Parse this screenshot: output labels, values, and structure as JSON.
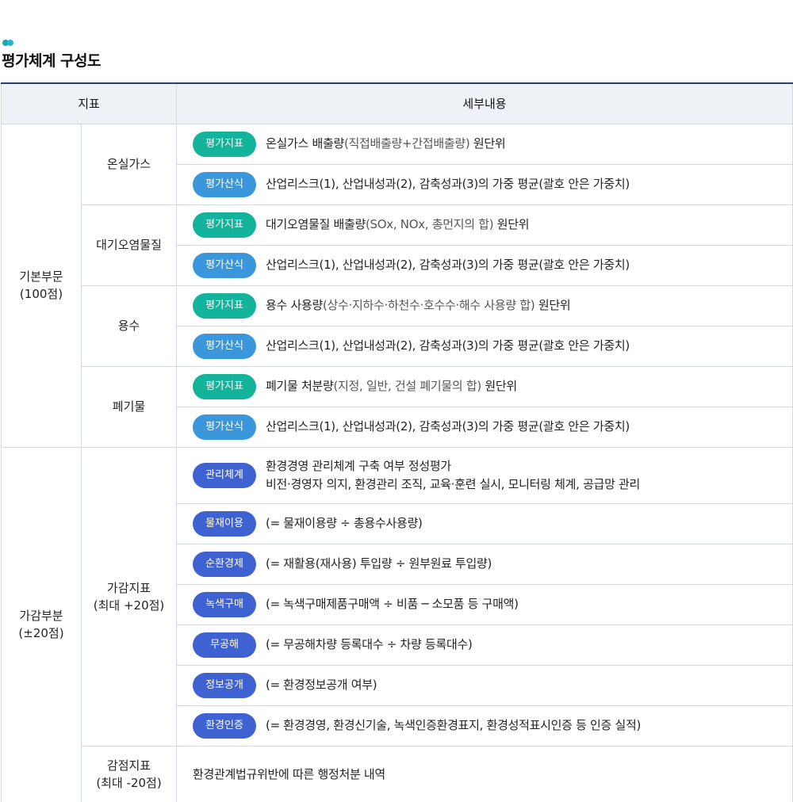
{
  "title": "평가체계 구성도",
  "headers": {
    "indicator": "지표",
    "details": "세부내용"
  },
  "badges": {
    "eval_indicator": "평가지표",
    "eval_formula": "평가산식",
    "mgmt_system": "관리체계",
    "material_use": "물재이용",
    "circular": "순환경제",
    "green_purchase": "녹색구매",
    "pollution_free": "무공해",
    "info_disclosure": "정보공개",
    "env_cert": "환경인증"
  },
  "basic": {
    "label_line1": "기본부문",
    "label_line2": "(100점)",
    "formula_text": "산업리스크(1), 산업내성과(2), 감축성과(3)의 가중 평균(괄호 안은 가중치)",
    "ghg": {
      "name": "온실가스",
      "indicator_main": "온실가스 배출량",
      "indicator_paren": "(직접배출량+간접배출량)",
      "indicator_tail": " 원단위"
    },
    "air": {
      "name": "대기오염물질",
      "indicator_main": "대기오염물질 배출량",
      "indicator_paren": "(SOx, NOx, 총먼지의 합)",
      "indicator_tail": " 원단위"
    },
    "water": {
      "name": "용수",
      "indicator_main": "용수 사용량",
      "indicator_paren": "(상수·지하수·하천수·호수수·해수 사용량 합)",
      "indicator_tail": " 원단위"
    },
    "waste": {
      "name": "폐기물",
      "indicator_main": "폐기물 처분량",
      "indicator_paren": "(지정, 일반, 건설 폐기물의 합)",
      "indicator_tail": " 원단위"
    }
  },
  "adjust": {
    "label_line1": "가감부분",
    "label_line2": "(±20점)",
    "plus": {
      "label_line1": "가감지표",
      "label_line2": "(최대 +20점)",
      "mgmt_line1": "환경경영 관리체계 구축 여부 정성평가",
      "mgmt_line2": "비전·경영자 의지, 환경관리 조직, 교육·훈련 실시, 모니터링 체계, 공급망 관리",
      "material_use": "(= 물재이용량 ÷ 총용수사용량)",
      "circular": "(= 재활용(재사용) 투입량 ÷ 원부원료 투입량)",
      "green_purchase": "(= 녹색구매제품구매액 ÷ 비품 ─ 소모품 등 구매액)",
      "pollution_free": "(= 무공해차량 등록대수 ÷ 차량 등록대수)",
      "info_disclosure": "(= 환경정보공개 여부)",
      "env_cert": "(= 환경경영, 환경신기술, 녹색인증환경표지, 환경성적표시인증 등 인증 실적)"
    },
    "minus": {
      "label_line1": "감점지표",
      "label_line2": "(최대 -20점)",
      "text": "환경관계법규위반에 따른 행정처분 내역"
    }
  }
}
